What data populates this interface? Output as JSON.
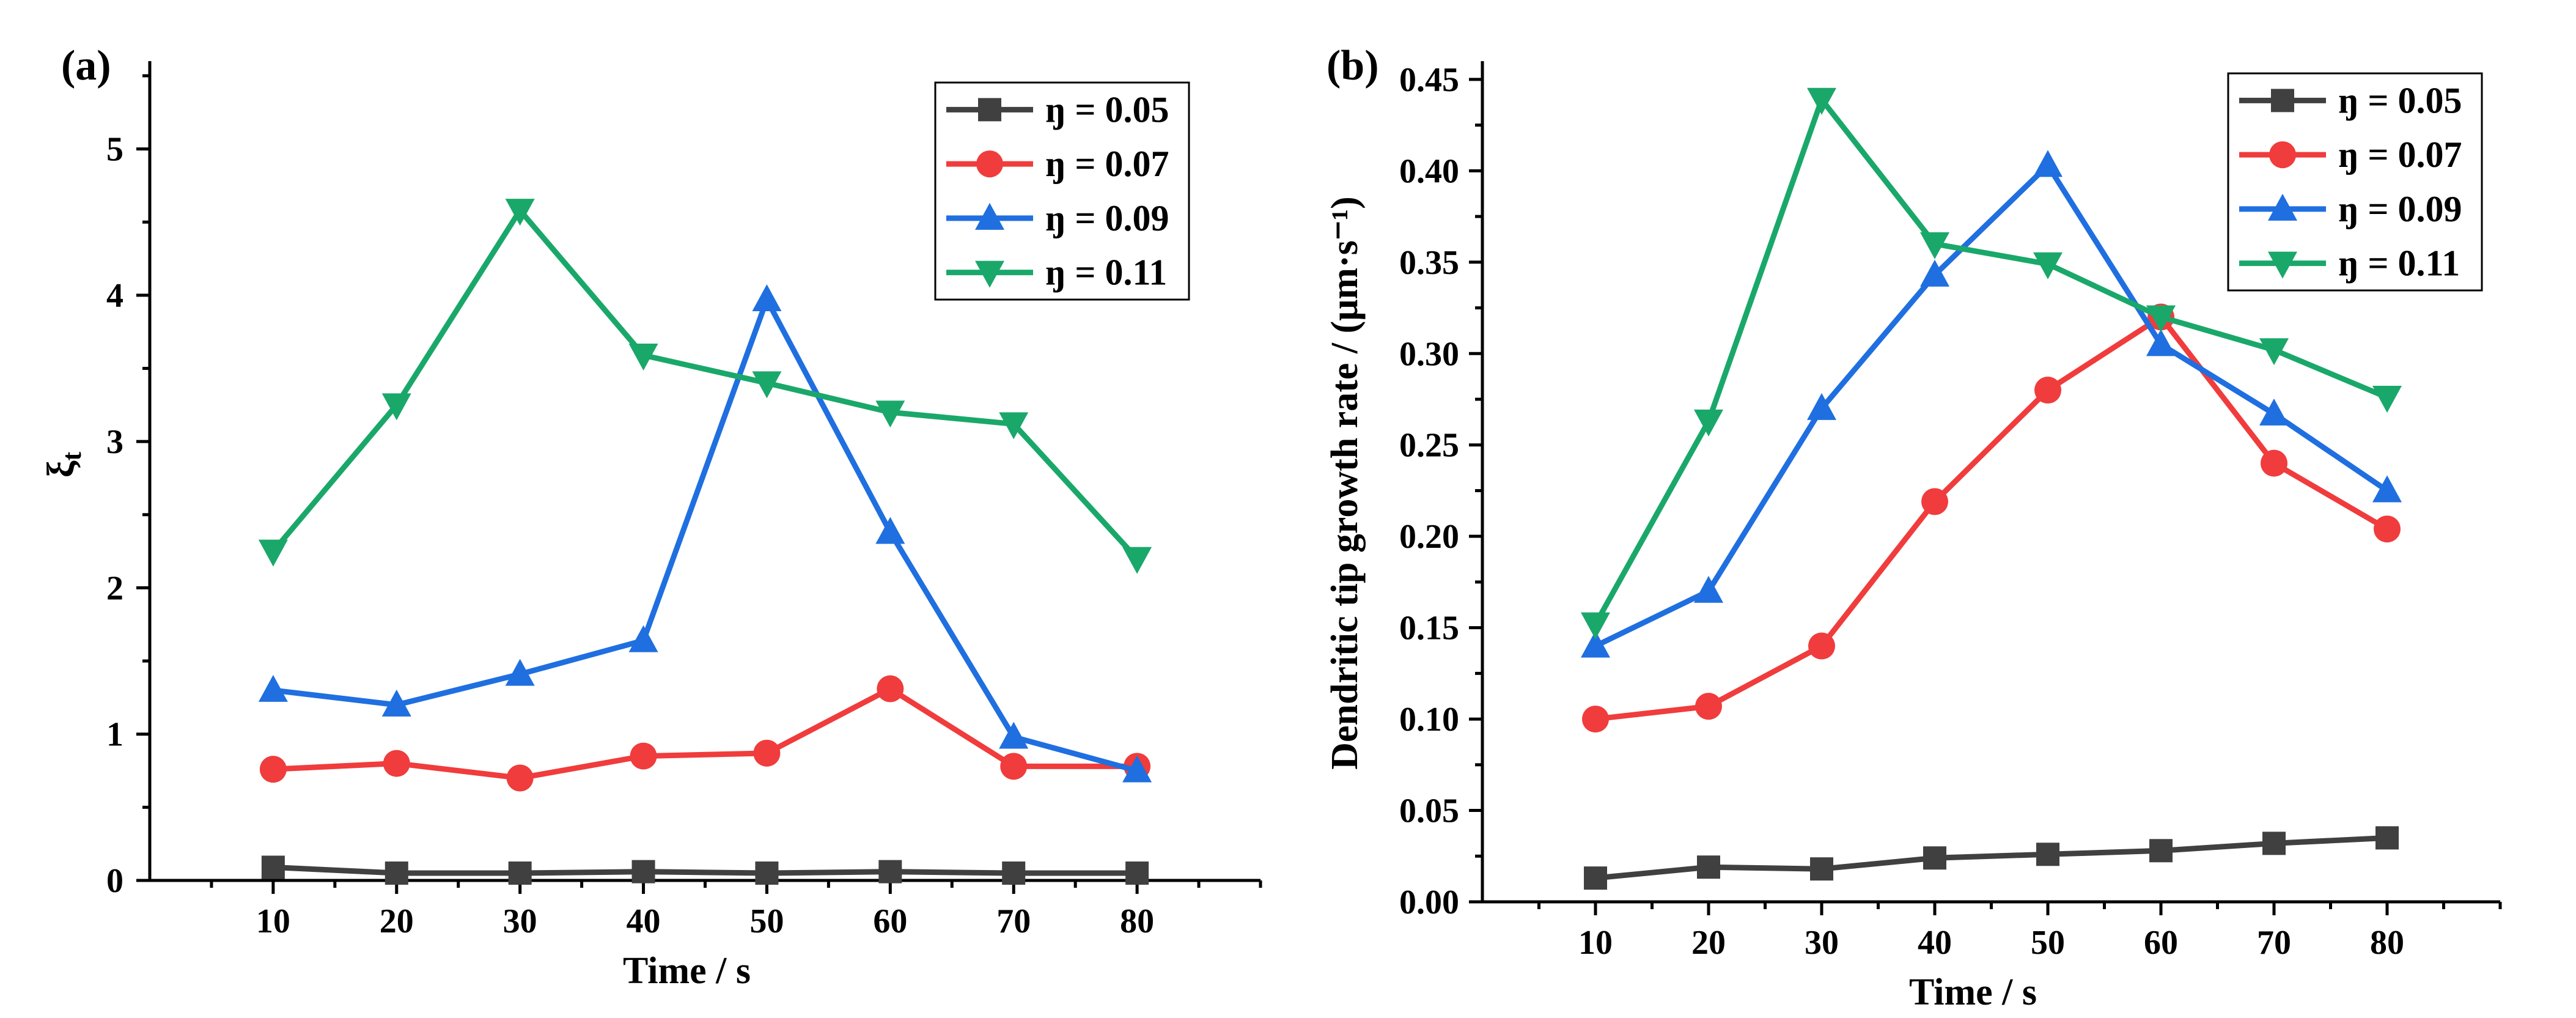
{
  "chart_data": [
    {
      "type": "line",
      "panel_label": "(a)",
      "title": "",
      "xlabel": "Time / s",
      "ylabel": "ξt",
      "ylabel_main": "ξ",
      "ylabel_sub": "t",
      "x": [
        10,
        20,
        30,
        40,
        50,
        60,
        70,
        80
      ],
      "xlim": [
        0,
        90
      ],
      "ylim": [
        0,
        5.6
      ],
      "xticks": [
        10,
        20,
        30,
        40,
        50,
        60,
        70,
        80
      ],
      "yticks": [
        0,
        1,
        2,
        3,
        4,
        5
      ],
      "ytick_labels": [
        "0",
        "1",
        "2",
        "3",
        "4",
        "5"
      ],
      "legend_position": "top-right",
      "series": [
        {
          "name": "ŋ = 0.05",
          "color": "#404040",
          "marker": "square",
          "values": [
            0.09,
            0.05,
            0.05,
            0.06,
            0.05,
            0.06,
            0.05,
            0.05
          ]
        },
        {
          "name": "ŋ = 0.07",
          "color": "#f03c3c",
          "marker": "circle",
          "values": [
            0.76,
            0.8,
            0.7,
            0.85,
            0.87,
            1.31,
            0.78,
            0.78
          ]
        },
        {
          "name": "ŋ = 0.09",
          "color": "#1f6fe0",
          "marker": "triangle-up",
          "values": [
            1.3,
            1.2,
            1.41,
            1.64,
            3.97,
            2.38,
            0.98,
            0.75
          ]
        },
        {
          "name": "ŋ = 0.11",
          "color": "#1aa86a",
          "marker": "triangle-down",
          "values": [
            2.25,
            3.25,
            4.58,
            3.59,
            3.4,
            3.2,
            3.12,
            2.2
          ]
        }
      ]
    },
    {
      "type": "line",
      "panel_label": "(b)",
      "title": "",
      "xlabel": "Time / s",
      "ylabel": "Dendritic tip growth rate / (μm·s⁻¹)",
      "x": [
        10,
        20,
        30,
        40,
        50,
        60,
        70,
        80
      ],
      "xlim": [
        0,
        90
      ],
      "ylim": [
        0,
        0.46
      ],
      "xticks": [
        10,
        20,
        30,
        40,
        50,
        60,
        70,
        80
      ],
      "yticks": [
        0,
        0.05,
        0.1,
        0.15,
        0.2,
        0.25,
        0.3,
        0.35,
        0.4,
        0.45
      ],
      "ytick_labels": [
        "0.00",
        "0.05",
        "0.10",
        "0.15",
        "0.20",
        "0.25",
        "0.30",
        "0.35",
        "0.40",
        "0.45"
      ],
      "legend_position": "top-right",
      "series": [
        {
          "name": "ŋ = 0.05",
          "color": "#404040",
          "marker": "square",
          "values": [
            0.013,
            0.019,
            0.018,
            0.024,
            0.026,
            0.028,
            0.032,
            0.035
          ]
        },
        {
          "name": "ŋ = 0.07",
          "color": "#f03c3c",
          "marker": "circle",
          "values": [
            0.1,
            0.107,
            0.14,
            0.219,
            0.28,
            0.32,
            0.24,
            0.204
          ]
        },
        {
          "name": "ŋ = 0.09",
          "color": "#1f6fe0",
          "marker": "triangle-up",
          "values": [
            0.14,
            0.17,
            0.27,
            0.343,
            0.403,
            0.305,
            0.267,
            0.225
          ]
        },
        {
          "name": "ŋ = 0.11",
          "color": "#1aa86a",
          "marker": "triangle-down",
          "values": [
            0.152,
            0.263,
            0.439,
            0.36,
            0.349,
            0.32,
            0.302,
            0.276
          ]
        }
      ]
    }
  ]
}
